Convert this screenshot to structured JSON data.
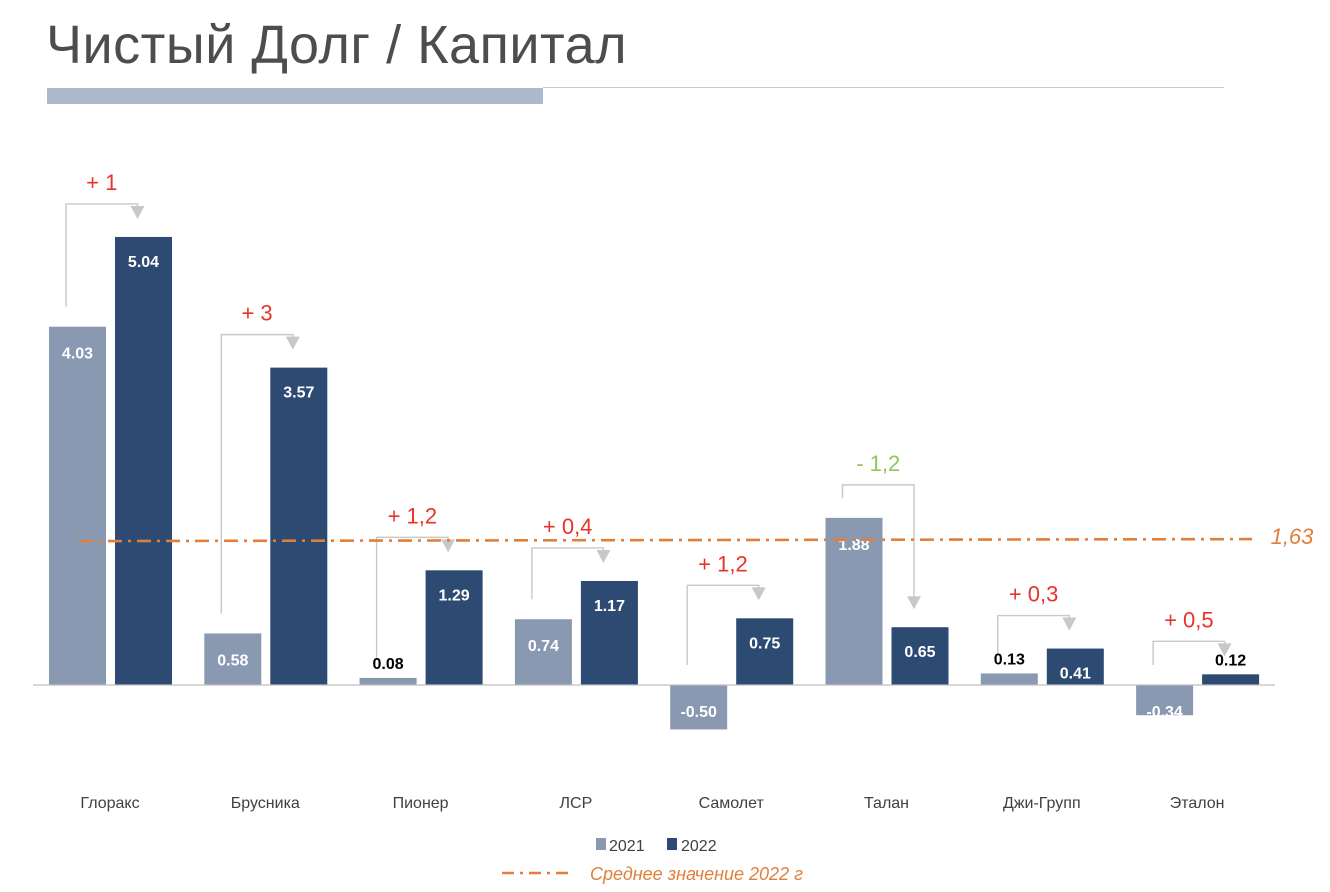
{
  "title": "Чистый Долг / Капитал",
  "colors": {
    "series_2021": "#8a99b2",
    "series_2022": "#2d4a72",
    "positive_change": "#e8332a",
    "negative_change": "#92c659",
    "average_line": "#e07f3a",
    "connector": "#c8c8c8",
    "axis": "#bfbfbf",
    "category_text": "#404040"
  },
  "chart_data": {
    "type": "bar",
    "categories": [
      "Глоракс",
      "Брусника",
      "Пионер",
      "ЛСР",
      "Самолет",
      "Талан",
      "Джи-Групп",
      "Эталон"
    ],
    "series": [
      {
        "name": "2021",
        "values": [
          4.03,
          0.58,
          0.08,
          0.74,
          -0.5,
          1.88,
          0.13,
          -0.34
        ]
      },
      {
        "name": "2022",
        "values": [
          5.04,
          3.57,
          1.29,
          1.17,
          0.75,
          0.65,
          0.41,
          0.12
        ]
      }
    ],
    "value_labels_2021": [
      "4.03",
      "0.58",
      "0.08",
      "0.74",
      "-0.50",
      "1.88",
      "0.13",
      "-0.34"
    ],
    "value_labels_2022": [
      "5.04",
      "3.57",
      "1.29",
      "1.17",
      "0.75",
      "0.65",
      "0.41",
      "0.12"
    ],
    "change_labels": [
      "+ 1",
      "+ 3",
      "+ 1,2",
      "+ 0,4",
      "+ 1,2",
      "- 1,2",
      "+ 0,3",
      "+ 0,5"
    ],
    "change_signs": [
      "positive",
      "positive",
      "positive",
      "positive",
      "positive",
      "negative",
      "positive",
      "positive"
    ],
    "average": {
      "value": 1.63,
      "label": "1,63",
      "legend_label": "Среднее значение 2022 г"
    },
    "legend": [
      "2021",
      "2022"
    ],
    "legend_position": "bottom",
    "ylim": [
      -0.5,
      5.04
    ],
    "grid": false
  }
}
